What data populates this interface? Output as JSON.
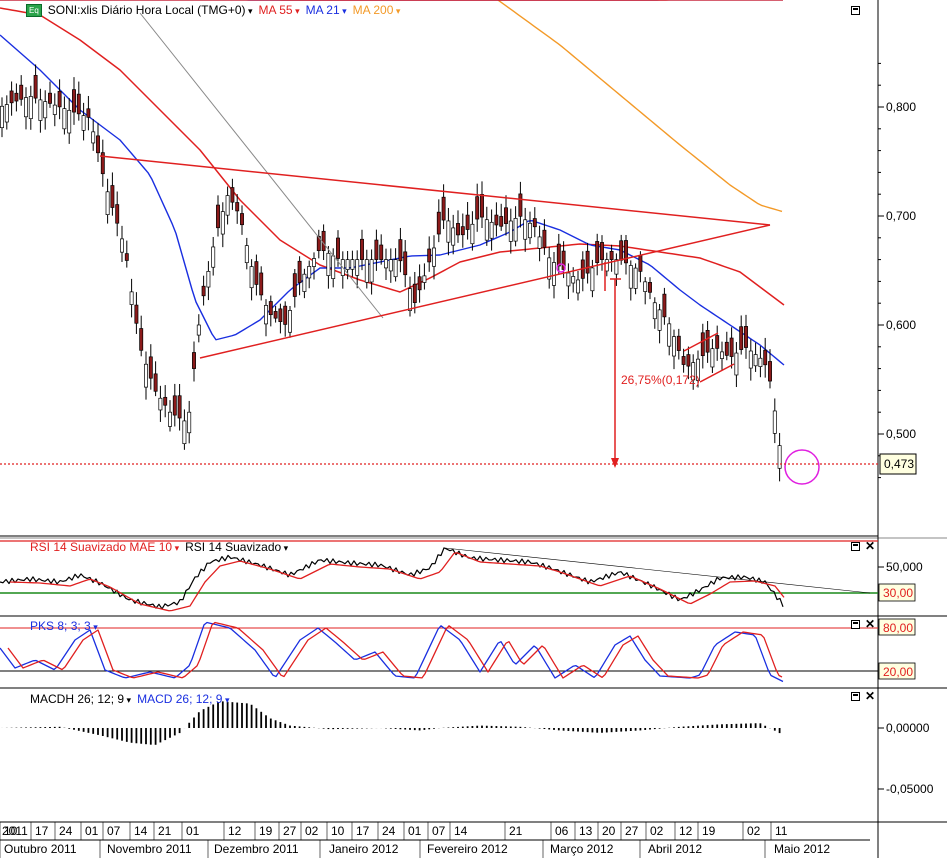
{
  "header": {
    "icon_label": "Eq",
    "symbol": "SONI:xlis Diário Hora Local (TMG+0)",
    "ma55": "MA 55",
    "ma21": "MA 21",
    "ma200": "MA 200"
  },
  "colors": {
    "ma55": "#e02020",
    "ma21": "#1a2fe0",
    "ma200": "#f39a28",
    "up": "#ffffff",
    "down": "#8b1a1a",
    "rsi": "#000000",
    "rsi_signal": "#e02020",
    "green": "#1a8a1a",
    "magenta": "#e020e0"
  },
  "price_axis": {
    "ticks": [
      "0,800",
      "0,700",
      "0,600",
      "0,500"
    ],
    "current_label": "0,473"
  },
  "annotation": {
    "measure_label": "26,75%(0,172)"
  },
  "rsi_panel": {
    "label_main": "RSI 14 Suavizado MAE 10",
    "label_secondary": "RSI 14 Suavizado",
    "ticks": [
      "50,000"
    ],
    "level_label": "30,00"
  },
  "pks_panel": {
    "label": "PKS 8; 3; 3",
    "high_label": "80,00",
    "low_label": "20,00"
  },
  "macd_panel": {
    "label_histogram": "MACDH 26; 12; 9",
    "label_lines": "MACD 26; 12; 9",
    "ticks": [
      "0,00000",
      "-0,05000"
    ]
  },
  "date_axis": {
    "days": [
      "2011",
      "10",
      "17",
      "24",
      "01",
      "07",
      "14",
      "21",
      "01",
      "12",
      "19",
      "27",
      "02",
      "10",
      "17",
      "24",
      "01",
      "07",
      "14",
      "21",
      "06",
      "13",
      "20",
      "27",
      "02",
      "12",
      "19",
      "02",
      "11"
    ],
    "months": [
      "Outubro 2011",
      "Novembro 2011",
      "Dezembro 2011",
      "Janeiro 2012",
      "Fevereiro 2012",
      "Março 2012",
      "Abril 2012",
      "Maio 2012"
    ]
  },
  "chart_data": [
    {
      "type": "candlestick",
      "title": "SONI:xlis Diário Hora Local (TMG+0)",
      "series": [
        {
          "name": "MA 55"
        },
        {
          "name": "MA 21"
        },
        {
          "name": "MA 200"
        }
      ],
      "key_levels": {
        "current": 0.473,
        "range_shown": [
          0.46,
          0.84
        ]
      },
      "path": {
        "dates": [
          "2011-10-03",
          "2011-10-17",
          "2011-10-27",
          "2011-11-08",
          "2011-11-18",
          "2011-12-01",
          "2011-12-15",
          "2011-12-28",
          "2012-01-10",
          "2012-01-24",
          "2012-02-07",
          "2012-02-21",
          "2012-03-06",
          "2012-03-20",
          "2012-04-02",
          "2012-04-16",
          "2012-04-27",
          "2012-05-08",
          "2012-05-14"
        ],
        "close": [
          0.81,
          0.8,
          0.74,
          0.61,
          0.52,
          0.65,
          0.66,
          0.62,
          0.67,
          0.66,
          0.69,
          0.7,
          0.67,
          0.67,
          0.64,
          0.56,
          0.58,
          0.57,
          0.473
        ]
      }
    },
    {
      "type": "line",
      "title": "RSI 14 Suavizado MAE 10",
      "series": [
        {
          "name": "RSI 14 Suavizado"
        },
        {
          "name": "RSI 14 Suavizado MAE 10"
        }
      ],
      "levels": [
        30,
        70
      ]
    },
    {
      "type": "line",
      "title": "PKS 8; 3; 3",
      "levels": [
        20,
        80
      ]
    },
    {
      "type": "bar",
      "title": "MACDH 26; 12; 9",
      "series": [
        {
          "name": "MACDH 26; 12; 9"
        },
        {
          "name": "MACD 26; 12; 9"
        }
      ]
    }
  ]
}
